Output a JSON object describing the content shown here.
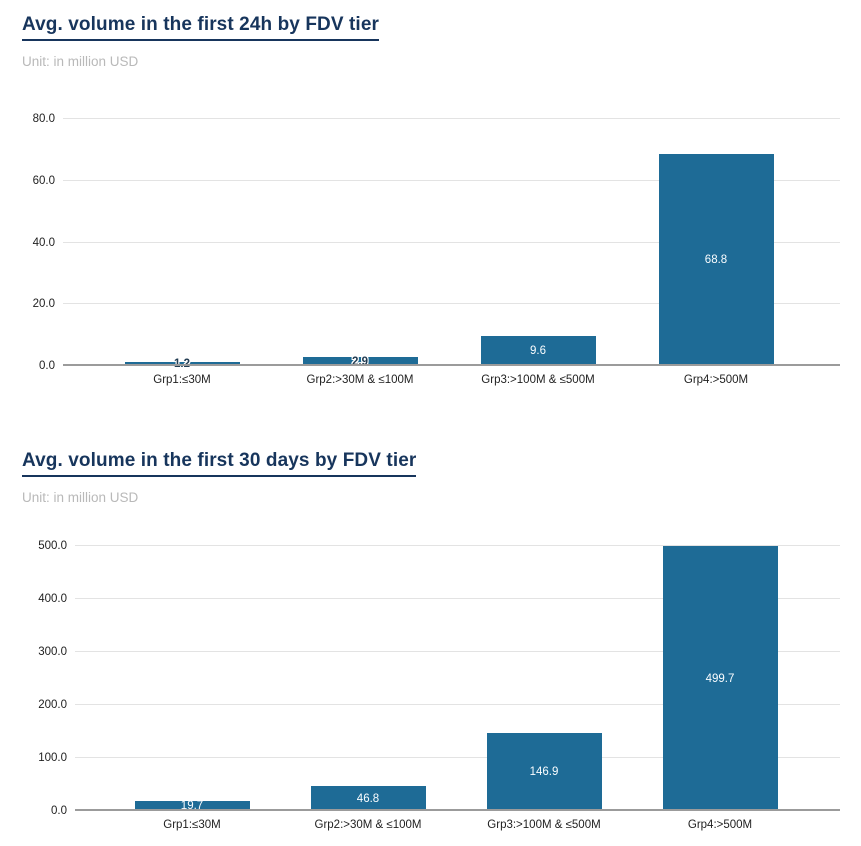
{
  "page": {
    "background": "#ffffff"
  },
  "colors": {
    "bar_fill": "#1e6b96",
    "title_navy": "#17355c",
    "subtitle_gray": "#b9b9b9",
    "gridline": "#e3e3e3",
    "axis_line": "#9b9b9b",
    "tick_text": "#1f1f1f",
    "value_label_inside": "#fafdff",
    "value_label_outside": "#223c52"
  },
  "chart_data": [
    {
      "type": "bar",
      "title": "Avg. volume in the first 24h by FDV tier",
      "subtitle": "Unit: in million USD",
      "categories": [
        "Grp1:≤30M",
        "Grp2:>30M & ≤100M",
        "Grp3:>100M & ≤500M",
        "Grp4:>500M"
      ],
      "values": [
        1.2,
        2.9,
        9.6,
        68.8
      ],
      "value_labels": [
        "1.2",
        "2.9",
        "9.6",
        "68.8"
      ],
      "xlabel": "",
      "ylabel": "",
      "ylim": [
        0,
        80
      ],
      "yticks": [
        "0.0",
        "20.0",
        "40.0",
        "60.0",
        "80.0"
      ],
      "grid": true,
      "legend": "none",
      "bar_color": "#1e6b96"
    },
    {
      "type": "bar",
      "title": "Avg. volume in the first 30 days by FDV tier",
      "subtitle": "Unit: in million USD",
      "categories": [
        "Grp1:≤30M",
        "Grp2:>30M & ≤100M",
        "Grp3:>100M & ≤500M",
        "Grp4:>500M"
      ],
      "values": [
        19.7,
        46.8,
        146.9,
        499.7
      ],
      "value_labels": [
        "19.7",
        "46.8",
        "146.9",
        "499.7"
      ],
      "xlabel": "",
      "ylabel": "",
      "ylim": [
        0,
        500
      ],
      "yticks": [
        "0.0",
        "100.0",
        "200.0",
        "300.0",
        "400.0",
        "500.0"
      ],
      "grid": true,
      "legend": "none",
      "bar_color": "#1e6b96"
    }
  ]
}
